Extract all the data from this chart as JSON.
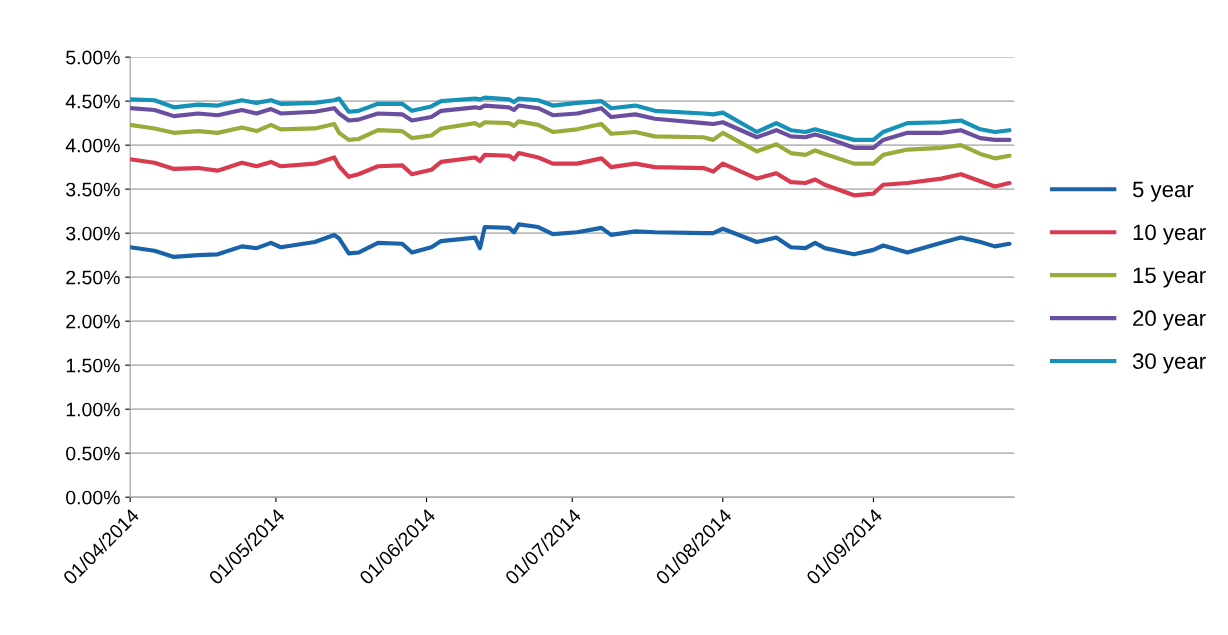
{
  "chart_data": {
    "type": "line",
    "x": [
      "2014-04-01",
      "2014-04-06",
      "2014-04-10",
      "2014-04-15",
      "2014-04-19",
      "2014-04-24",
      "2014-04-27",
      "2014-04-30",
      "2014-05-02",
      "2014-05-09",
      "2014-05-13",
      "2014-05-14",
      "2014-05-16",
      "2014-05-18",
      "2014-05-22",
      "2014-05-27",
      "2014-05-29",
      "2014-06-02",
      "2014-06-04",
      "2014-06-11",
      "2014-06-12",
      "2014-06-13",
      "2014-06-18",
      "2014-06-19",
      "2014-06-20",
      "2014-06-24",
      "2014-06-27",
      "2014-07-02",
      "2014-07-07",
      "2014-07-09",
      "2014-07-14",
      "2014-07-18",
      "2014-07-28",
      "2014-07-30",
      "2014-08-01",
      "2014-08-08",
      "2014-08-12",
      "2014-08-15",
      "2014-08-18",
      "2014-08-20",
      "2014-08-22",
      "2014-08-28",
      "2014-09-01",
      "2014-09-03",
      "2014-09-08",
      "2014-09-15",
      "2014-09-19",
      "2014-09-23",
      "2014-09-26",
      "2014-09-29"
    ],
    "series": [
      {
        "name": "5 year",
        "color": "#1a63a8",
        "values": [
          2.84,
          2.8,
          2.73,
          2.75,
          2.76,
          2.85,
          2.83,
          2.89,
          2.84,
          2.9,
          2.98,
          2.94,
          2.77,
          2.78,
          2.89,
          2.88,
          2.78,
          2.84,
          2.91,
          2.95,
          2.83,
          3.07,
          3.06,
          3.01,
          3.1,
          3.07,
          2.99,
          3.01,
          3.06,
          2.98,
          3.02,
          3.01,
          3.0,
          3.0,
          3.05,
          2.9,
          2.95,
          2.84,
          2.83,
          2.89,
          2.83,
          2.76,
          2.81,
          2.86,
          2.78,
          2.89,
          2.95,
          2.9,
          2.85,
          2.88
        ]
      },
      {
        "name": "10 year",
        "color": "#d83b4f",
        "values": [
          3.84,
          3.8,
          3.73,
          3.74,
          3.71,
          3.8,
          3.76,
          3.81,
          3.76,
          3.79,
          3.86,
          3.76,
          3.64,
          3.67,
          3.76,
          3.77,
          3.67,
          3.72,
          3.81,
          3.86,
          3.82,
          3.89,
          3.88,
          3.84,
          3.91,
          3.86,
          3.79,
          3.79,
          3.85,
          3.75,
          3.79,
          3.75,
          3.74,
          3.7,
          3.79,
          3.62,
          3.68,
          3.58,
          3.57,
          3.61,
          3.55,
          3.43,
          3.45,
          3.55,
          3.57,
          3.62,
          3.67,
          3.59,
          3.53,
          3.57
        ]
      },
      {
        "name": "15 year",
        "color": "#9aab3c",
        "values": [
          4.23,
          4.19,
          4.14,
          4.16,
          4.14,
          4.2,
          4.16,
          4.23,
          4.18,
          4.19,
          4.24,
          4.14,
          4.06,
          4.07,
          4.17,
          4.16,
          4.08,
          4.11,
          4.19,
          4.25,
          4.22,
          4.26,
          4.25,
          4.22,
          4.27,
          4.23,
          4.15,
          4.18,
          4.24,
          4.13,
          4.15,
          4.1,
          4.09,
          4.06,
          4.14,
          3.93,
          4.01,
          3.91,
          3.89,
          3.94,
          3.9,
          3.79,
          3.79,
          3.89,
          3.95,
          3.97,
          4.0,
          3.9,
          3.85,
          3.88
        ]
      },
      {
        "name": "20 year",
        "color": "#6a4fa0",
        "values": [
          4.42,
          4.4,
          4.33,
          4.36,
          4.34,
          4.4,
          4.36,
          4.41,
          4.36,
          4.38,
          4.42,
          4.36,
          4.28,
          4.29,
          4.36,
          4.35,
          4.28,
          4.32,
          4.39,
          4.43,
          4.42,
          4.45,
          4.43,
          4.4,
          4.45,
          4.42,
          4.34,
          4.36,
          4.42,
          4.32,
          4.35,
          4.3,
          4.25,
          4.24,
          4.26,
          4.09,
          4.17,
          4.1,
          4.09,
          4.12,
          4.09,
          3.97,
          3.97,
          4.06,
          4.14,
          4.14,
          4.17,
          4.08,
          4.06,
          4.06
        ]
      },
      {
        "name": "30 year",
        "color": "#1691b8",
        "values": [
          4.52,
          4.51,
          4.43,
          4.46,
          4.45,
          4.51,
          4.48,
          4.51,
          4.47,
          4.48,
          4.51,
          4.53,
          4.38,
          4.39,
          4.47,
          4.47,
          4.39,
          4.44,
          4.5,
          4.53,
          4.52,
          4.54,
          4.52,
          4.49,
          4.53,
          4.51,
          4.45,
          4.48,
          4.5,
          4.42,
          4.45,
          4.39,
          4.36,
          4.35,
          4.37,
          4.15,
          4.25,
          4.17,
          4.15,
          4.18,
          4.15,
          4.06,
          4.06,
          4.15,
          4.25,
          4.26,
          4.28,
          4.18,
          4.15,
          4.17
        ]
      }
    ],
    "xlim": [
      "2014-04-01",
      "2014-09-30"
    ],
    "xticks": [
      {
        "value": "2014-04-01",
        "label": "01/04/2014"
      },
      {
        "value": "2014-05-01",
        "label": "01/05/2014"
      },
      {
        "value": "2014-06-01",
        "label": "01/06/2014"
      },
      {
        "value": "2014-07-01",
        "label": "01/07/2014"
      },
      {
        "value": "2014-08-01",
        "label": "01/08/2014"
      },
      {
        "value": "2014-09-01",
        "label": "01/09/2014"
      }
    ],
    "ylim": [
      0,
      5
    ],
    "yticks": [
      {
        "value": 0,
        "label": "0.00%"
      },
      {
        "value": 0.5,
        "label": "0.50%"
      },
      {
        "value": 1,
        "label": "1.00%"
      },
      {
        "value": 1.5,
        "label": "1.50%"
      },
      {
        "value": 2,
        "label": "2.00%"
      },
      {
        "value": 2.5,
        "label": "2.50%"
      },
      {
        "value": 3,
        "label": "3.00%"
      },
      {
        "value": 3.5,
        "label": "3.50%"
      },
      {
        "value": 4,
        "label": "4.00%"
      },
      {
        "value": 4.5,
        "label": "4.50%"
      },
      {
        "value": 5,
        "label": "5.00%"
      }
    ],
    "grid": "y",
    "legend": "right",
    "marker": "none",
    "line_style": "solid"
  }
}
